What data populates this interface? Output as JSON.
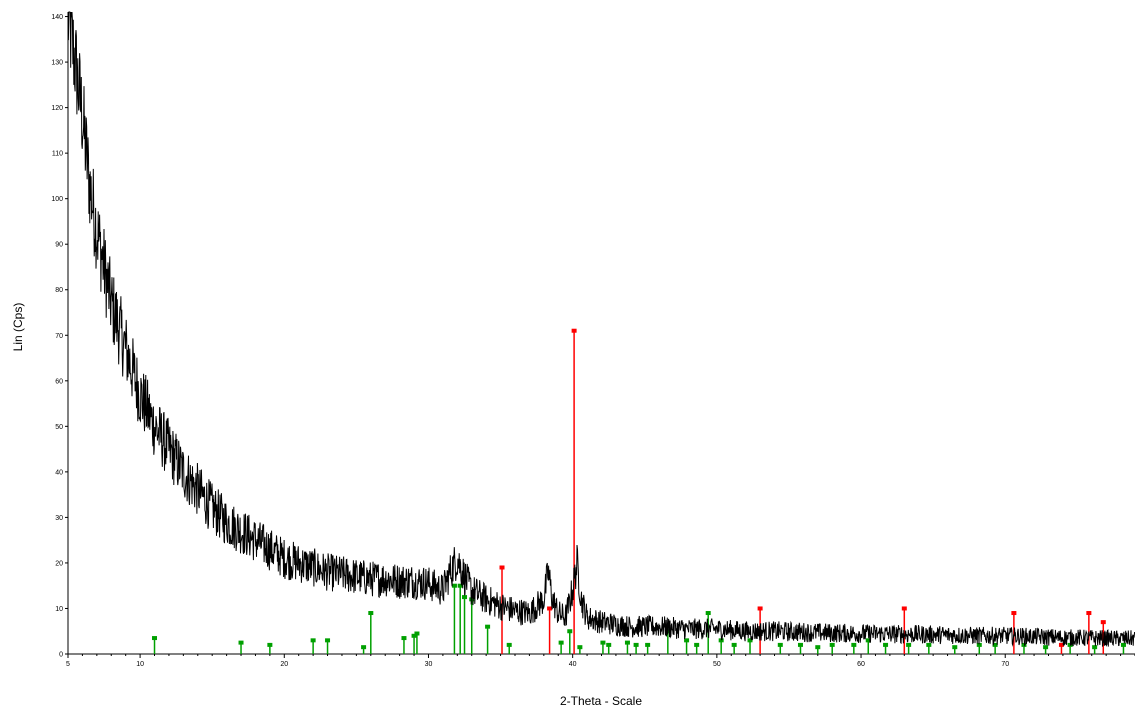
{
  "chart_data": {
    "type": "line",
    "title": "",
    "xlabel": "2-Theta - Scale",
    "ylabel": "Lin (Cps)",
    "xlim": [
      5,
      79
    ],
    "ylim": [
      0,
      141
    ],
    "x_ticks": [
      5,
      10,
      20,
      30,
      40,
      50,
      60,
      70
    ],
    "y_ticks": [
      0,
      10,
      20,
      30,
      40,
      50,
      60,
      70,
      80,
      90,
      100,
      110,
      120,
      130,
      140
    ],
    "grid": false,
    "legend": "none",
    "series": [
      {
        "color": "#000000",
        "x": [
          5,
          5.5,
          6,
          6.5,
          7,
          7.5,
          8,
          8.5,
          9,
          9.5,
          10,
          11,
          12,
          13,
          14,
          15,
          16,
          17,
          18,
          19,
          20,
          21,
          22,
          23,
          24,
          25,
          26,
          27,
          28,
          29,
          30,
          31,
          31.5,
          32,
          32.5,
          33,
          34,
          35,
          36,
          37,
          38,
          38.3,
          38.6,
          39,
          39.5,
          40,
          40.3,
          40.6,
          41,
          42,
          43,
          44,
          46,
          48,
          50,
          52,
          54,
          56,
          58,
          60,
          62,
          64,
          66,
          68,
          70,
          72,
          74,
          76,
          78,
          79
        ],
        "y": [
          140,
          130,
          118,
          103,
          93,
          85,
          77,
          72,
          67,
          62,
          57,
          50,
          45,
          40,
          36,
          32,
          29,
          27,
          25,
          23,
          21,
          20,
          19,
          18,
          17.5,
          17,
          16.5,
          16.5,
          16,
          16,
          15.5,
          14,
          18,
          21,
          17,
          14,
          12,
          10.5,
          9.5,
          9,
          12,
          18,
          12,
          9,
          8,
          14,
          20,
          12,
          8,
          7,
          6.5,
          6,
          6,
          5.5,
          5.5,
          5,
          5,
          4.8,
          4.6,
          4.5,
          4.4,
          4.3,
          4.2,
          4,
          4,
          3.8,
          3.6,
          3.5,
          3.4,
          3.4
        ]
      }
    ],
    "reference_lines": [
      {
        "color": "#ff0000",
        "x": [
          35.1,
          38.4,
          40.1,
          53.0,
          63.0,
          70.6,
          73.9,
          75.8,
          76.8
        ],
        "y": [
          19,
          10,
          71,
          10,
          10,
          9,
          2,
          9,
          7
        ]
      },
      {
        "color": "#00a000",
        "x": [
          11,
          17,
          19,
          22,
          23,
          25.5,
          26,
          28.3,
          29,
          29.2,
          31.8,
          32.2,
          32.5,
          33,
          34.1,
          35.6,
          39.2,
          39.8,
          40.5,
          42.1,
          42.5,
          43.8,
          44.4,
          45.2,
          46.6,
          47.9,
          48.6,
          49.4,
          50.3,
          51.2,
          52.3,
          54.4,
          55.8,
          57,
          58,
          59.5,
          60.5,
          61.7,
          63.3,
          64.7,
          66.5,
          68.2,
          69.3,
          71.3,
          72.8,
          74.5,
          76.2,
          78.2
        ],
        "y": [
          3.5,
          2.5,
          2,
          3,
          3,
          1.5,
          9,
          3.5,
          4,
          4.5,
          15,
          15,
          12.5,
          12,
          6,
          2,
          2.5,
          5,
          1.5,
          2.5,
          2,
          2.5,
          2,
          2,
          5,
          3,
          2,
          9,
          3,
          2,
          3,
          2,
          2,
          1.5,
          2,
          2,
          3,
          2,
          2,
          2,
          1.5,
          2,
          2,
          2,
          1.5,
          2,
          1.5,
          2
        ]
      }
    ]
  }
}
